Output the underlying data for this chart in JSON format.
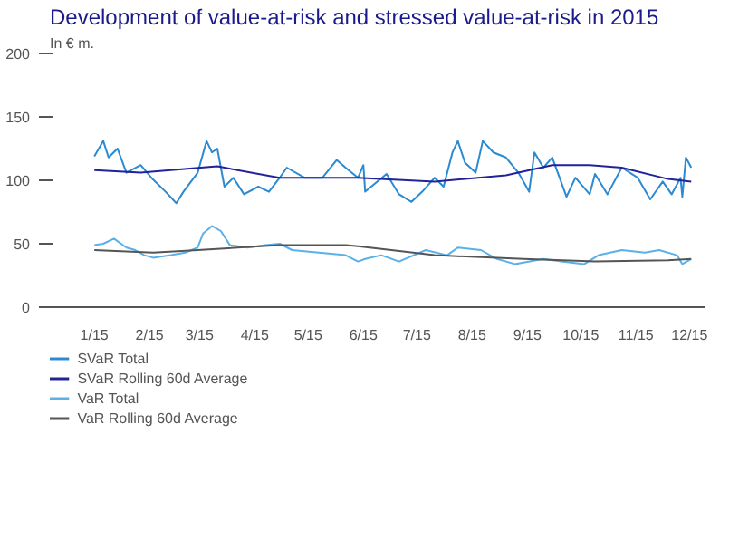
{
  "chart_data": {
    "type": "line",
    "title": "Development of value-at-risk and stressed value-at-risk in 2015",
    "subtitle": "In € m.",
    "xlim": [
      "2014-12-07",
      "2015-12-10"
    ],
    "xticks": [
      {
        "value": "2015-01-01",
        "label": "1/15"
      },
      {
        "value": "2015-02-01",
        "label": "2/15"
      },
      {
        "value": "2015-03-01",
        "label": "3/15"
      },
      {
        "value": "2015-04-01",
        "label": "4/15"
      },
      {
        "value": "2015-05-01",
        "label": "5/15"
      },
      {
        "value": "2015-06-01",
        "label": "6/15"
      },
      {
        "value": "2015-07-01",
        "label": "7/15"
      },
      {
        "value": "2015-08-01",
        "label": "8/15"
      },
      {
        "value": "2015-09-01",
        "label": "9/15"
      },
      {
        "value": "2015-10-01",
        "label": "10/15"
      },
      {
        "value": "2015-11-01",
        "label": "11/15"
      },
      {
        "value": "2015-12-01",
        "label": "12/15"
      }
    ],
    "ylim": [
      0,
      200
    ],
    "yticks": [
      0,
      50,
      100,
      150,
      200
    ],
    "legend": "bottom",
    "line_style": "solid",
    "series": [
      {
        "name": "SVaR Total",
        "color": "#2a8ad2",
        "x": [
          "2015-01-01",
          "2015-01-06",
          "2015-01-09",
          "2015-01-14",
          "2015-01-19",
          "2015-01-27",
          "2015-02-02",
          "2015-02-10",
          "2015-02-16",
          "2015-02-20",
          "2015-02-28",
          "2015-03-05",
          "2015-03-08",
          "2015-03-11",
          "2015-03-15",
          "2015-03-20",
          "2015-03-26",
          "2015-04-03",
          "2015-04-09",
          "2015-04-15",
          "2015-04-19",
          "2015-04-29",
          "2015-05-09",
          "2015-05-17",
          "2015-05-22",
          "2015-05-29",
          "2015-06-01",
          "2015-06-02",
          "2015-06-14",
          "2015-06-21",
          "2015-06-28",
          "2015-07-04",
          "2015-07-11",
          "2015-07-16",
          "2015-07-21",
          "2015-07-24",
          "2015-07-28",
          "2015-08-03",
          "2015-08-07",
          "2015-08-13",
          "2015-08-20",
          "2015-08-27",
          "2015-09-02",
          "2015-09-05",
          "2015-09-10",
          "2015-09-15",
          "2015-09-23",
          "2015-09-28",
          "2015-10-06",
          "2015-10-09",
          "2015-10-16",
          "2015-10-24",
          "2015-11-02",
          "2015-11-09",
          "2015-11-16",
          "2015-11-21",
          "2015-11-26",
          "2015-11-27",
          "2015-11-29",
          "2015-12-02"
        ],
        "values": [
          119,
          131,
          118,
          125,
          106,
          112,
          102,
          91,
          82,
          91,
          106,
          131,
          122,
          125,
          95,
          102,
          89,
          95,
          91,
          102,
          110,
          102,
          102,
          116,
          110,
          102,
          112,
          91,
          105,
          89,
          83,
          91,
          102,
          95,
          122,
          131,
          114,
          106,
          131,
          122,
          118,
          106,
          91,
          122,
          110,
          118,
          87,
          102,
          89,
          105,
          89,
          110,
          102,
          85,
          99,
          89,
          102,
          87,
          118,
          110
        ]
      },
      {
        "name": "SVaR Rolling 60d Average",
        "color": "#22229a",
        "x": [
          "2015-01-01",
          "2015-01-27",
          "2015-03-11",
          "2015-04-15",
          "2015-05-22",
          "2015-05-29",
          "2015-07-11",
          "2015-08-20",
          "2015-09-15",
          "2015-10-06",
          "2015-10-24",
          "2015-11-19",
          "2015-12-02"
        ],
        "values": [
          108,
          106,
          111,
          102,
          102,
          102,
          99,
          104,
          112,
          112,
          110,
          101,
          99
        ]
      },
      {
        "name": "VaR Total",
        "color": "#5ab0e8",
        "x": [
          "2015-01-01",
          "2015-01-06",
          "2015-01-12",
          "2015-01-19",
          "2015-01-24",
          "2015-01-29",
          "2015-02-03",
          "2015-02-13",
          "2015-02-21",
          "2015-02-28",
          "2015-03-03",
          "2015-03-08",
          "2015-03-13",
          "2015-03-18",
          "2015-03-28",
          "2015-04-07",
          "2015-04-15",
          "2015-04-22",
          "2015-05-07",
          "2015-05-22",
          "2015-05-29",
          "2015-06-02",
          "2015-06-11",
          "2015-06-21",
          "2015-07-06",
          "2015-07-18",
          "2015-07-24",
          "2015-08-06",
          "2015-08-15",
          "2015-08-25",
          "2015-09-10",
          "2015-09-20",
          "2015-10-03",
          "2015-10-11",
          "2015-10-24",
          "2015-11-06",
          "2015-11-14",
          "2015-11-24",
          "2015-11-27",
          "2015-12-02"
        ],
        "values": [
          49,
          50,
          54,
          47,
          45,
          41,
          39,
          41,
          43,
          47,
          58,
          64,
          60,
          49,
          47,
          49,
          50,
          45,
          43,
          41,
          36,
          38,
          41,
          36,
          45,
          41,
          47,
          45,
          38,
          34,
          38,
          36,
          34,
          41,
          45,
          43,
          45,
          41,
          34,
          38
        ]
      },
      {
        "name": "VaR Rolling 60d Average",
        "color": "#555555",
        "x": [
          "2015-01-01",
          "2015-02-03",
          "2015-02-28",
          "2015-04-15",
          "2015-05-22",
          "2015-05-29",
          "2015-07-11",
          "2015-08-30",
          "2015-10-09",
          "2015-11-19",
          "2015-12-02"
        ],
        "values": [
          45,
          43,
          45,
          49,
          49,
          48,
          41,
          38,
          36,
          37,
          38
        ]
      }
    ]
  }
}
